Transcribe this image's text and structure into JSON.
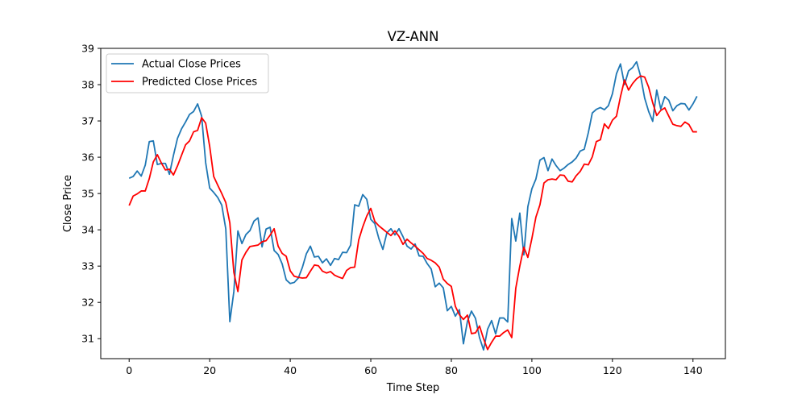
{
  "chart_data": {
    "type": "line",
    "title": "VZ-ANN",
    "xlabel": "Time Step",
    "ylabel": "Close Price",
    "xlim": [
      -7.05,
      148.05
    ],
    "ylim": [
      30.45,
      39.0
    ],
    "xticks": [
      0,
      20,
      40,
      60,
      80,
      100,
      120,
      140
    ],
    "yticks": [
      31,
      32,
      33,
      34,
      35,
      36,
      37,
      38,
      39
    ],
    "grid": false,
    "legend_position": "upper-left",
    "colors": {
      "actual": "#1f77b4",
      "predicted": "#ff0000"
    },
    "series": [
      {
        "name": "Actual Close Prices",
        "color": "#1f77b4",
        "x_start": 0,
        "values": [
          35.42,
          35.47,
          35.62,
          35.48,
          35.78,
          36.43,
          36.45,
          35.8,
          35.83,
          35.83,
          35.53,
          36.05,
          36.52,
          36.78,
          36.97,
          37.18,
          37.26,
          37.47,
          37.13,
          35.85,
          35.15,
          35.03,
          34.89,
          34.68,
          34.02,
          31.47,
          32.3,
          33.97,
          33.62,
          33.87,
          33.98,
          34.24,
          34.33,
          33.53,
          34.02,
          34.07,
          33.43,
          33.32,
          33.06,
          32.62,
          32.52,
          32.55,
          32.67,
          32.96,
          33.34,
          33.55,
          33.25,
          33.27,
          33.09,
          33.2,
          33.02,
          33.21,
          33.18,
          33.38,
          33.37,
          33.58,
          34.69,
          34.65,
          34.97,
          34.84,
          34.29,
          34.17,
          33.76,
          33.46,
          33.92,
          34.03,
          33.86,
          34.03,
          33.81,
          33.55,
          33.47,
          33.61,
          33.28,
          33.27,
          33.07,
          32.92,
          32.43,
          32.53,
          32.4,
          31.77,
          31.89,
          31.62,
          31.8,
          30.86,
          31.48,
          31.76,
          31.56,
          31.03,
          30.69,
          31.26,
          31.5,
          31.13,
          31.57,
          31.57,
          31.46,
          34.31,
          33.69,
          34.46,
          33.31,
          34.64,
          35.13,
          35.4,
          35.92,
          35.99,
          35.63,
          35.95,
          35.77,
          35.63,
          35.7,
          35.8,
          35.87,
          35.98,
          36.17,
          36.22,
          36.67,
          37.22,
          37.32,
          37.37,
          37.31,
          37.42,
          37.75,
          38.3,
          38.57,
          38.0,
          38.38,
          38.47,
          38.63,
          38.23,
          37.63,
          37.26,
          36.99,
          37.85,
          37.33,
          37.67,
          37.57,
          37.28,
          37.42,
          37.48,
          37.47,
          37.3,
          37.47,
          37.68
        ]
      },
      {
        "name": "Predicted Close Prices",
        "color": "#ff0000",
        "x_start": 0,
        "values": [
          34.67,
          34.93,
          34.99,
          35.07,
          35.07,
          35.41,
          35.87,
          36.07,
          35.84,
          35.65,
          35.67,
          35.51,
          35.76,
          36.05,
          36.34,
          36.45,
          36.7,
          36.74,
          37.09,
          36.94,
          36.3,
          35.47,
          35.23,
          35.0,
          34.75,
          34.19,
          32.83,
          32.3,
          33.17,
          33.38,
          33.54,
          33.56,
          33.58,
          33.67,
          33.7,
          33.85,
          34.03,
          33.55,
          33.35,
          33.27,
          32.87,
          32.72,
          32.69,
          32.67,
          32.68,
          32.86,
          33.03,
          33.01,
          32.86,
          32.81,
          32.85,
          32.75,
          32.7,
          32.66,
          32.88,
          32.96,
          32.97,
          33.72,
          34.08,
          34.38,
          34.59,
          34.23,
          34.11,
          34.02,
          33.93,
          33.84,
          33.97,
          33.82,
          33.6,
          33.74,
          33.64,
          33.55,
          33.45,
          33.35,
          33.21,
          33.16,
          33.09,
          32.97,
          32.64,
          32.52,
          32.44,
          31.89,
          31.66,
          31.53,
          31.65,
          31.14,
          31.16,
          31.35,
          31.0,
          30.7,
          30.9,
          31.07,
          31.07,
          31.17,
          31.24,
          31.03,
          32.39,
          33.0,
          33.52,
          33.24,
          33.76,
          34.35,
          34.69,
          35.29,
          35.38,
          35.4,
          35.38,
          35.51,
          35.5,
          35.34,
          35.32,
          35.49,
          35.61,
          35.81,
          35.79,
          36.01,
          36.43,
          36.48,
          36.92,
          36.79,
          37.02,
          37.13,
          37.67,
          38.13,
          37.85,
          38.03,
          38.16,
          38.24,
          38.21,
          37.93,
          37.5,
          37.15,
          37.29,
          37.36,
          37.13,
          36.91,
          36.87,
          36.85,
          36.97,
          36.9,
          36.7,
          36.7
        ]
      }
    ]
  }
}
